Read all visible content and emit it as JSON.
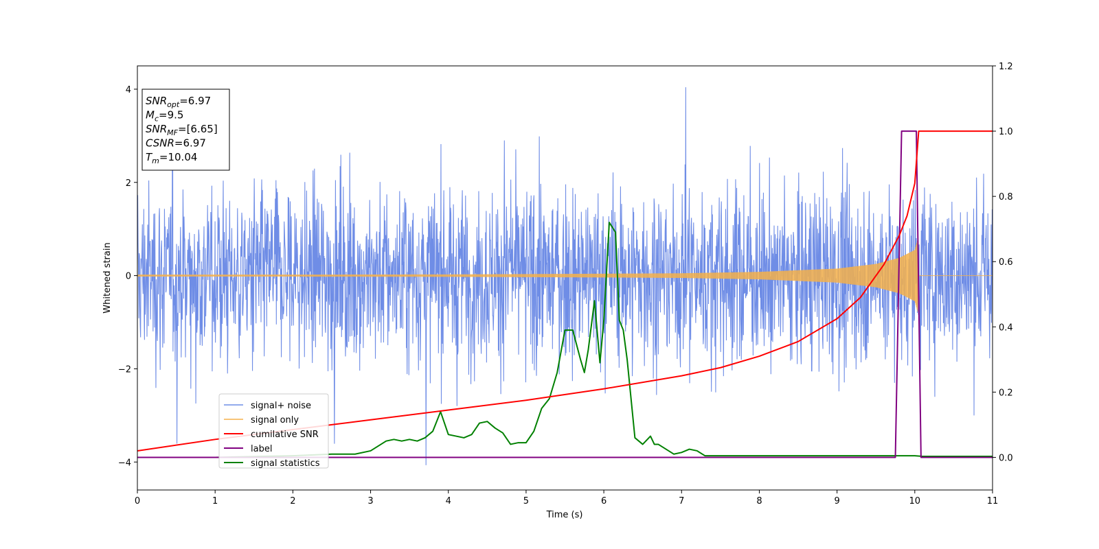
{
  "chart_data": {
    "type": "line",
    "xlabel": "Time (s)",
    "ylabel": "Whitened strain",
    "xlim": [
      0,
      11
    ],
    "ylim": [
      -4.6,
      4.5
    ],
    "y2lim": [
      -0.1,
      1.2
    ],
    "xticks": [
      0,
      1,
      2,
      3,
      4,
      5,
      6,
      7,
      8,
      9,
      10,
      11
    ],
    "yticks": [
      -4,
      -2,
      0,
      2,
      4
    ],
    "y2ticks": [
      0.0,
      0.2,
      0.4,
      0.6,
      0.8,
      1.0,
      1.2
    ],
    "grid": false,
    "legend_placement": "lower-left",
    "annotation_box": {
      "lines": [
        {
          "base": "SNR",
          "sub": "opt",
          "rest": "=6.97"
        },
        {
          "base": "M",
          "sub": "c",
          "rest": "=9.5"
        },
        {
          "base": "SNR",
          "sub": "MF",
          "rest": "=[6.65]"
        },
        {
          "base": "CSNR",
          "sub": "",
          "rest": "=6.97"
        },
        {
          "base": "T",
          "sub": "m",
          "rest": "=10.04"
        }
      ]
    },
    "series": [
      {
        "name": "signal+ noise",
        "color": "#6f8de6",
        "axis": "left",
        "description_noise_std": 0.95,
        "x_range": [
          0,
          11
        ]
      },
      {
        "name": "signal only",
        "color": "#f5b04a",
        "axis": "left",
        "envelope": {
          "x": [
            0,
            2,
            4,
            6,
            7,
            8,
            9,
            9.5,
            9.8,
            10.0,
            10.04,
            10.05,
            11
          ],
          "amp": [
            0.02,
            0.02,
            0.025,
            0.04,
            0.05,
            0.08,
            0.15,
            0.25,
            0.38,
            0.55,
            0.8,
            0,
            0
          ]
        }
      },
      {
        "name": "cumilative SNR",
        "color": "#ff0000",
        "axis": "right",
        "x": [
          0,
          1,
          2,
          3,
          4,
          5,
          6,
          7,
          7.5,
          8,
          8.5,
          9,
          9.3,
          9.6,
          9.8,
          9.9,
          10.0,
          10.05,
          11
        ],
        "y": [
          0.02,
          0.055,
          0.085,
          0.115,
          0.145,
          0.175,
          0.21,
          0.25,
          0.275,
          0.31,
          0.355,
          0.425,
          0.49,
          0.59,
          0.68,
          0.74,
          0.84,
          1.0,
          1.0
        ]
      },
      {
        "name": "label",
        "color": "#800080",
        "axis": "right",
        "x": [
          0,
          9.75,
          9.83,
          10.02,
          10.08,
          11
        ],
        "y": [
          0,
          0,
          1.0,
          1.0,
          0,
          0
        ]
      },
      {
        "name": "signal statistics",
        "color": "#008000",
        "axis": "right",
        "x": [
          0,
          1,
          2,
          2.5,
          2.8,
          3.0,
          3.1,
          3.2,
          3.3,
          3.4,
          3.5,
          3.6,
          3.7,
          3.8,
          3.9,
          4.0,
          4.1,
          4.2,
          4.3,
          4.4,
          4.5,
          4.6,
          4.7,
          4.8,
          4.9,
          5.0,
          5.1,
          5.2,
          5.3,
          5.4,
          5.5,
          5.6,
          5.7,
          5.75,
          5.8,
          5.88,
          5.95,
          6.0,
          6.07,
          6.15,
          6.2,
          6.25,
          6.3,
          6.4,
          6.5,
          6.6,
          6.65,
          6.7,
          6.8,
          6.9,
          7.0,
          7.1,
          7.2,
          7.3,
          7.5,
          8,
          8.5,
          9,
          9.5,
          9.8,
          10.0,
          10.1,
          10.5,
          11
        ],
        "y": [
          0.0,
          0.0,
          0.005,
          0.01,
          0.01,
          0.02,
          0.035,
          0.05,
          0.055,
          0.05,
          0.055,
          0.05,
          0.06,
          0.08,
          0.14,
          0.07,
          0.065,
          0.06,
          0.07,
          0.105,
          0.11,
          0.09,
          0.075,
          0.04,
          0.045,
          0.045,
          0.08,
          0.15,
          0.18,
          0.26,
          0.39,
          0.39,
          0.3,
          0.26,
          0.33,
          0.48,
          0.29,
          0.42,
          0.72,
          0.69,
          0.42,
          0.39,
          0.3,
          0.06,
          0.04,
          0.065,
          0.04,
          0.04,
          0.025,
          0.01,
          0.015,
          0.025,
          0.02,
          0.005,
          0.005,
          0.005,
          0.005,
          0.005,
          0.005,
          0.005,
          0.005,
          0.003,
          0.003,
          0.003
        ]
      }
    ]
  }
}
